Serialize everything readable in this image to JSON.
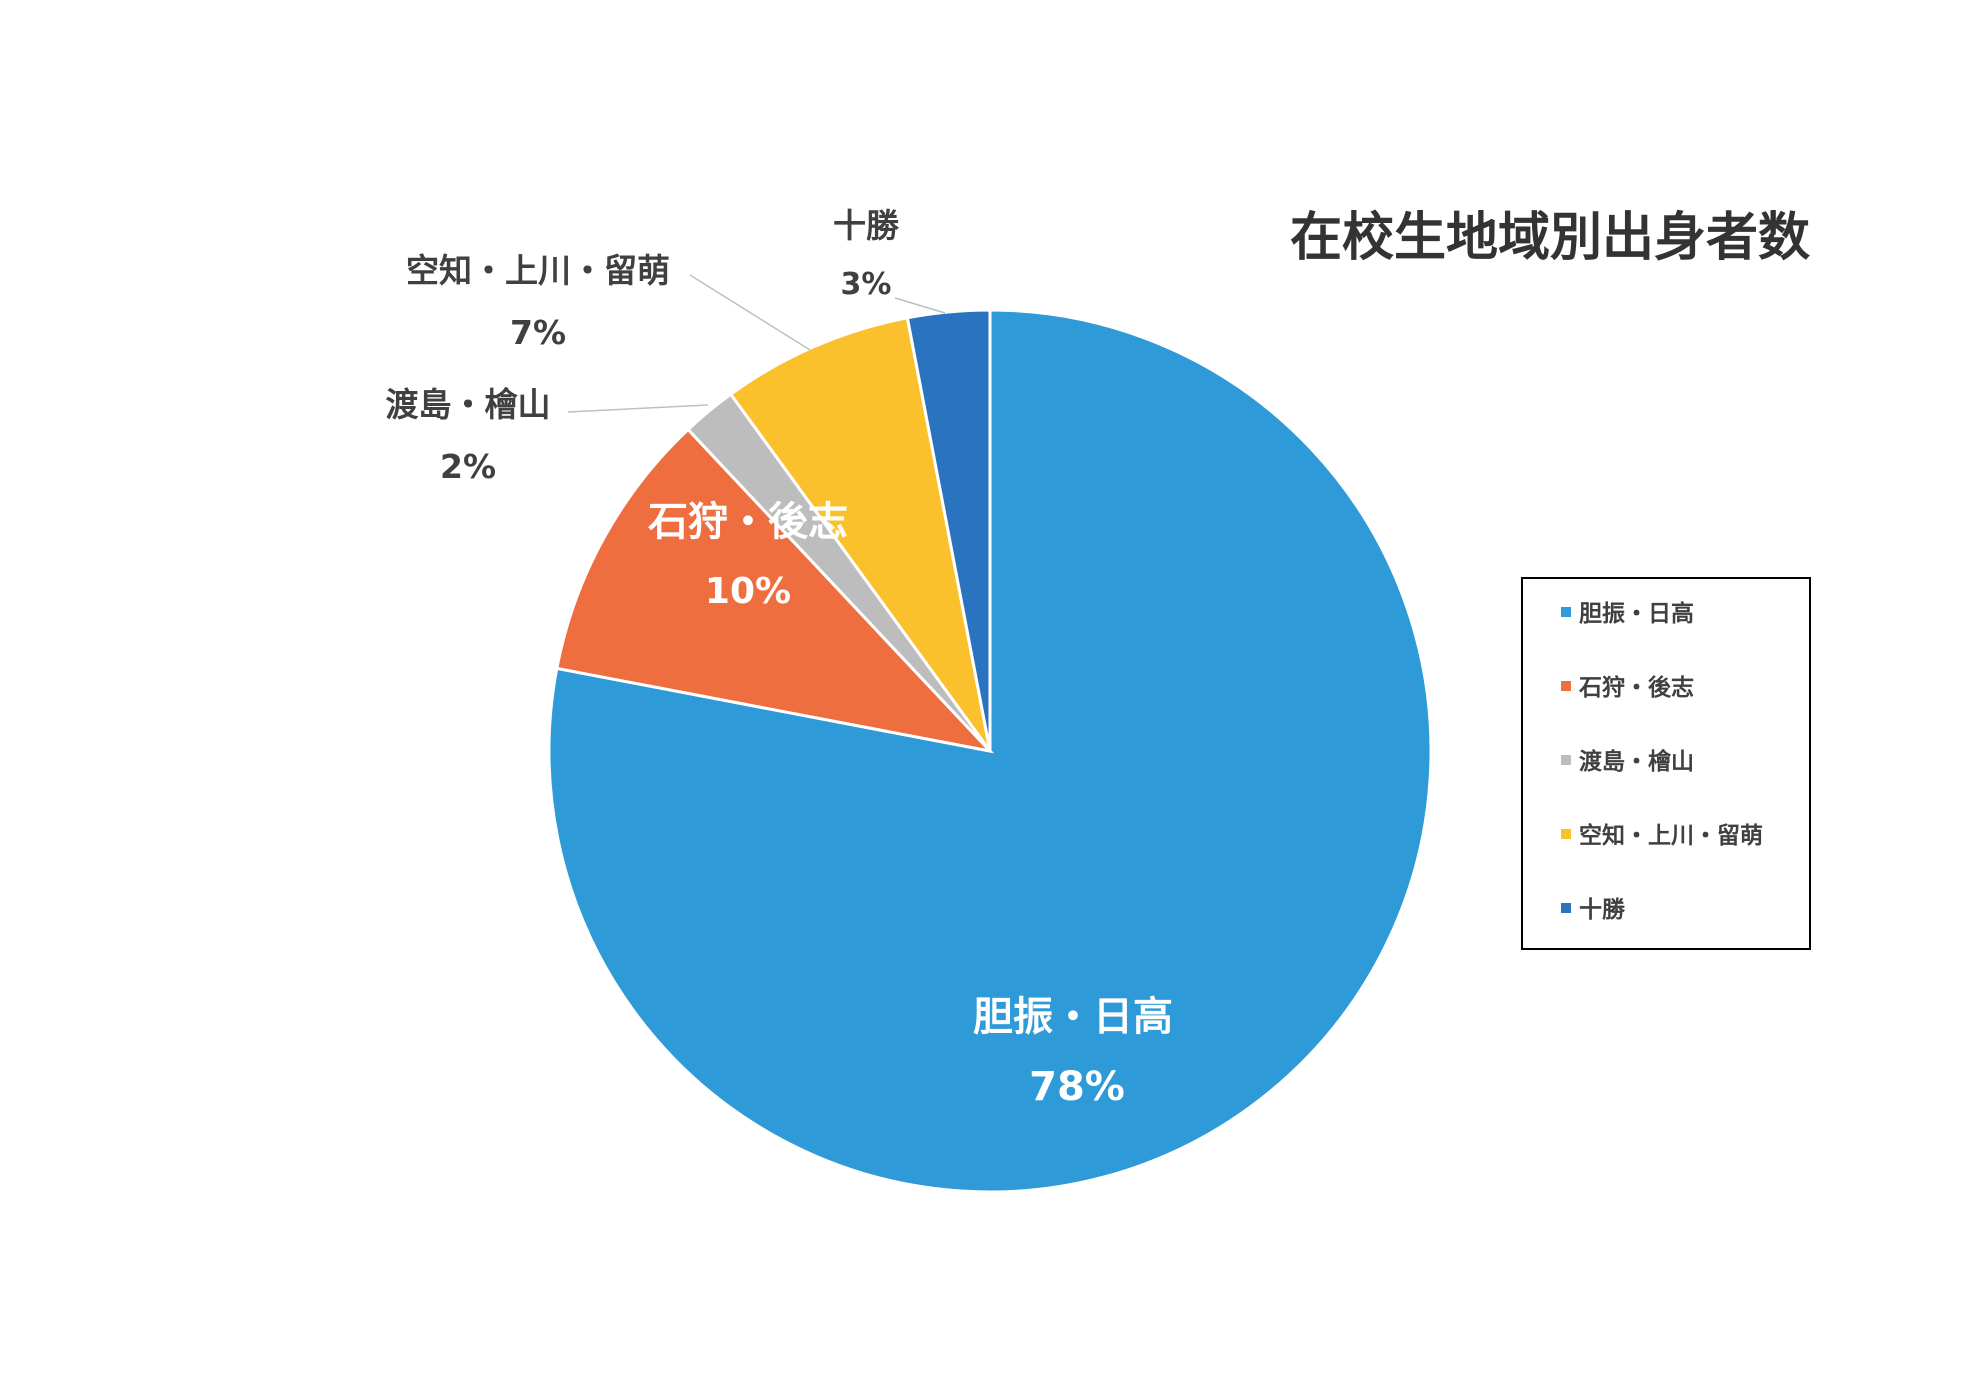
{
  "chart_data": {
    "type": "pie",
    "title": "在校生地域別出身者数",
    "categories": [
      "胆振・日高",
      "石狩・後志",
      "渡島・檜山",
      "空知・上川・留萌",
      "十勝"
    ],
    "values": [
      78,
      10,
      2,
      7,
      3
    ],
    "labels": [
      "78%",
      "10%",
      "2%",
      "7%",
      "3%"
    ],
    "slice_labels": [
      {
        "name": "胆振・日高",
        "pct": "78%"
      },
      {
        "name": "石狩・後志",
        "pct": "10%"
      },
      {
        "name": "渡島・檜山",
        "pct": "2%"
      },
      {
        "name": "空知・上川・留萌",
        "pct": "7%"
      },
      {
        "name": "十勝",
        "pct": "3%"
      }
    ],
    "colors": [
      "#2e9ad8",
      "#ef6e3f",
      "#bdbdbd",
      "#fbc12d",
      "#2a74bf"
    ],
    "legend": {
      "placement": "right",
      "entries": [
        "胆振・日高",
        "石狩・後志",
        "渡島・檜山",
        "空知・上川・留萌",
        "十勝"
      ]
    }
  }
}
